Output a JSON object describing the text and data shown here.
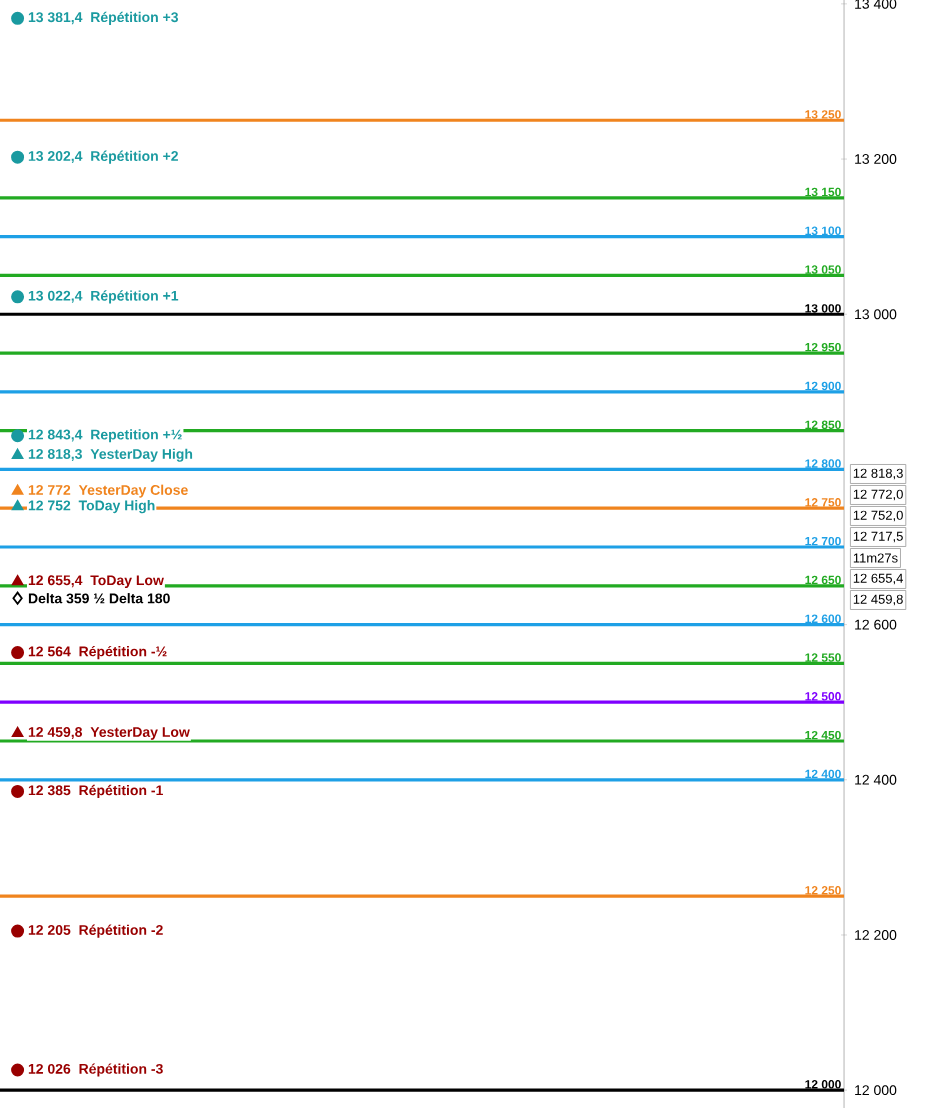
{
  "chart_data": {
    "type": "scatter",
    "categories": [
      null,
      null,
      null,
      null,
      null,
      null,
      null,
      null,
      null,
      null,
      null,
      null,
      null,
      null,
      null,
      null,
      null,
      null,
      null,
      null,
      null,
      null,
      null,
      null
    ],
    "ylim": [
      11977,
      13405
    ],
    "yticks": [
      {
        "value": 12000,
        "label": "12 000"
      },
      {
        "value": 12200,
        "label": "12 200"
      },
      {
        "value": 12400,
        "label": "12 400"
      },
      {
        "value": 12600,
        "label": "12 600"
      },
      {
        "value": 13000,
        "label": "13 000"
      },
      {
        "value": 13200,
        "label": "13 200"
      },
      {
        "value": 13400,
        "label": "13 400"
      }
    ],
    "tick_labels": "y",
    "series": [
      {
        "name": "Répétition +3",
        "color": "#1a9aa0",
        "marker": "circle",
        "values": [
          13381.4,
          null,
          null,
          null,
          null,
          null,
          null,
          null,
          null,
          null,
          null,
          null,
          null,
          null,
          null,
          null,
          null,
          null,
          null,
          null,
          null,
          null,
          null,
          null
        ],
        "value_labels": [
          "13 381,4",
          null,
          null,
          null,
          null,
          null,
          null,
          null,
          null,
          null,
          null,
          null,
          null,
          null,
          null,
          null,
          null,
          null,
          null,
          null,
          null,
          null,
          null,
          null
        ]
      },
      {
        "name": "Répétition +2",
        "color": "#1a9aa0",
        "marker": "circle",
        "values": [
          13202.4,
          null,
          null,
          null,
          null,
          null,
          null,
          null,
          null,
          null,
          null,
          null,
          null,
          null,
          null,
          null,
          null,
          null,
          null,
          null,
          null,
          null,
          null,
          null
        ],
        "value_labels": [
          "13 202,4",
          null,
          null,
          null,
          null,
          null,
          null,
          null,
          null,
          null,
          null,
          null,
          null,
          null,
          null,
          null,
          null,
          null,
          null,
          null,
          null,
          null,
          null,
          null
        ]
      },
      {
        "name": "Répétition +1",
        "color": "#1a9aa0",
        "marker": "circle",
        "values": [
          13022.4,
          null,
          null,
          null,
          null,
          null,
          null,
          null,
          null,
          null,
          null,
          null,
          null,
          null,
          null,
          null,
          null,
          null,
          null,
          null,
          null,
          null,
          null,
          null
        ],
        "value_labels": [
          "13 022,4",
          null,
          null,
          null,
          null,
          null,
          null,
          null,
          null,
          null,
          null,
          null,
          null,
          null,
          null,
          null,
          null,
          null,
          null,
          null,
          null,
          null,
          null,
          null
        ]
      },
      {
        "name": "Repetition +½",
        "color": "#1a9aa0",
        "marker": "circle",
        "values": [
          12843.4,
          null,
          null,
          null,
          null,
          null,
          null,
          null,
          null,
          null,
          null,
          null,
          null,
          null,
          null,
          null,
          null,
          null,
          null,
          null,
          null,
          null,
          null,
          null
        ],
        "value_labels": [
          "12 843,4",
          null,
          null,
          null,
          null,
          null,
          null,
          null,
          null,
          null,
          null,
          null,
          null,
          null,
          null,
          null,
          null,
          null,
          null,
          null,
          null,
          null,
          null,
          null
        ]
      },
      {
        "name": "YesterDay High",
        "color": "#1a9aa0",
        "marker": "triangle",
        "values": [
          12818.3,
          null,
          null,
          null,
          null,
          null,
          null,
          null,
          null,
          null,
          null,
          null,
          null,
          null,
          null,
          null,
          null,
          null,
          null,
          null,
          null,
          null,
          null,
          null
        ],
        "value_labels": [
          "12 818,3",
          null,
          null,
          null,
          null,
          null,
          null,
          null,
          null,
          null,
          null,
          null,
          null,
          null,
          null,
          null,
          null,
          null,
          null,
          null,
          null,
          null,
          null,
          null
        ]
      },
      {
        "name": "YesterDay Close",
        "color": "#f0841e",
        "marker": "triangle",
        "values": [
          12772,
          null,
          null,
          null,
          null,
          null,
          null,
          null,
          null,
          null,
          null,
          null,
          null,
          null,
          null,
          null,
          null,
          null,
          null,
          null,
          null,
          null,
          null,
          null
        ],
        "value_labels": [
          "12 772",
          null,
          null,
          null,
          null,
          null,
          null,
          null,
          null,
          null,
          null,
          null,
          null,
          null,
          null,
          null,
          null,
          null,
          null,
          null,
          null,
          null,
          null,
          null
        ]
      },
      {
        "name": "ToDay High",
        "color": "#1a9aa0",
        "marker": "triangle",
        "values": [
          12752,
          null,
          null,
          null,
          null,
          null,
          null,
          null,
          null,
          null,
          null,
          null,
          null,
          null,
          null,
          null,
          null,
          null,
          null,
          null,
          null,
          null,
          null,
          null
        ],
        "value_labels": [
          "12 752",
          null,
          null,
          null,
          null,
          null,
          null,
          null,
          null,
          null,
          null,
          null,
          null,
          null,
          null,
          null,
          null,
          null,
          null,
          null,
          null,
          null,
          null,
          null
        ]
      },
      {
        "name": "ToDay Low",
        "color": "#990000",
        "marker": "triangle",
        "values": [
          12655.4,
          null,
          null,
          null,
          null,
          null,
          null,
          null,
          null,
          null,
          null,
          null,
          null,
          null,
          null,
          null,
          null,
          null,
          null,
          null,
          null,
          null,
          null,
          null
        ],
        "value_labels": [
          "12 655,4",
          null,
          null,
          null,
          null,
          null,
          null,
          null,
          null,
          null,
          null,
          null,
          null,
          null,
          null,
          null,
          null,
          null,
          null,
          null,
          null,
          null,
          null,
          null
        ]
      },
      {
        "name": "Delta 359   ½ Delta 180",
        "color": "#000000",
        "marker": "diamond",
        "values": [
          12634,
          null,
          null,
          null,
          null,
          null,
          null,
          null,
          null,
          null,
          null,
          null,
          null,
          null,
          null,
          null,
          null,
          null,
          null,
          null,
          null,
          null,
          null,
          null
        ]
      },
      {
        "name": "Répétition -½",
        "color": "#990000",
        "marker": "circle",
        "values": [
          12564,
          null,
          null,
          null,
          null,
          null,
          null,
          null,
          null,
          null,
          null,
          null,
          null,
          null,
          null,
          null,
          null,
          null,
          null,
          null,
          null,
          null,
          null,
          null
        ],
        "value_labels": [
          "12 564",
          null,
          null,
          null,
          null,
          null,
          null,
          null,
          null,
          null,
          null,
          null,
          null,
          null,
          null,
          null,
          null,
          null,
          null,
          null,
          null,
          null,
          null,
          null
        ]
      },
      {
        "name": "YesterDay Low",
        "color": "#990000",
        "marker": "triangle",
        "values": [
          12459.8,
          null,
          null,
          null,
          null,
          null,
          null,
          null,
          null,
          null,
          null,
          null,
          null,
          null,
          null,
          null,
          null,
          null,
          null,
          null,
          null,
          null,
          null,
          null
        ],
        "value_labels": [
          "12 459,8",
          null,
          null,
          null,
          null,
          null,
          null,
          null,
          null,
          null,
          null,
          null,
          null,
          null,
          null,
          null,
          null,
          null,
          null,
          null,
          null,
          null,
          null,
          null
        ]
      },
      {
        "name": "Répétition -1",
        "color": "#990000",
        "marker": "circle",
        "values": [
          12385,
          null,
          null,
          null,
          null,
          null,
          null,
          null,
          null,
          null,
          null,
          null,
          null,
          null,
          null,
          null,
          null,
          null,
          null,
          null,
          null,
          null,
          null,
          null
        ],
        "value_labels": [
          "12 385",
          null,
          null,
          null,
          null,
          null,
          null,
          null,
          null,
          null,
          null,
          null,
          null,
          null,
          null,
          null,
          null,
          null,
          null,
          null,
          null,
          null,
          null,
          null
        ]
      },
      {
        "name": "Répétition -2",
        "color": "#990000",
        "marker": "circle",
        "values": [
          12205,
          null,
          null,
          null,
          null,
          null,
          null,
          null,
          null,
          null,
          null,
          null,
          null,
          null,
          null,
          null,
          null,
          null,
          null,
          null,
          null,
          null,
          null,
          null
        ],
        "value_labels": [
          "12 205",
          null,
          null,
          null,
          null,
          null,
          null,
          null,
          null,
          null,
          null,
          null,
          null,
          null,
          null,
          null,
          null,
          null,
          null,
          null,
          null,
          null,
          null,
          null
        ]
      },
      {
        "name": "Répétition -3",
        "color": "#990000",
        "marker": "circle",
        "values": [
          12026,
          null,
          null,
          null,
          null,
          null,
          null,
          null,
          null,
          null,
          null,
          null,
          null,
          null,
          null,
          null,
          null,
          null,
          null,
          null,
          null,
          null,
          null,
          null
        ],
        "value_labels": [
          "12 026",
          null,
          null,
          null,
          null,
          null,
          null,
          null,
          null,
          null,
          null,
          null,
          null,
          null,
          null,
          null,
          null,
          null,
          null,
          null,
          null,
          null,
          null,
          null
        ]
      }
    ],
    "ref_lines": [
      {
        "axis": "y",
        "value": 13250,
        "label": "13 250",
        "color": "#f0841e"
      },
      {
        "axis": "y",
        "value": 13150,
        "label": "13 150",
        "color": "#22aa22"
      },
      {
        "axis": "y",
        "value": 13100,
        "label": "13 100",
        "color": "#1ea0e6"
      },
      {
        "axis": "y",
        "value": 13050,
        "label": "13 050",
        "color": "#22aa22"
      },
      {
        "axis": "y",
        "value": 13000,
        "label": "13 000",
        "color": "#000000"
      },
      {
        "axis": "y",
        "value": 12950,
        "label": "12 950",
        "color": "#22aa22"
      },
      {
        "axis": "y",
        "value": 12900,
        "label": "12 900",
        "color": "#1ea0e6"
      },
      {
        "axis": "y",
        "value": 12850,
        "label": "12 850",
        "color": "#22aa22"
      },
      {
        "axis": "y",
        "value": 12800,
        "label": "12 800",
        "color": "#1ea0e6"
      },
      {
        "axis": "y",
        "value": 12750,
        "label": "12 750",
        "color": "#f0841e"
      },
      {
        "axis": "y",
        "value": 12700,
        "label": "12 700",
        "color": "#1ea0e6"
      },
      {
        "axis": "y",
        "value": 12650,
        "label": "12 650",
        "color": "#22aa22"
      },
      {
        "axis": "y",
        "value": 12600,
        "label": "12 600",
        "color": "#1ea0e6"
      },
      {
        "axis": "y",
        "value": 12550,
        "label": "12 550",
        "color": "#22aa22"
      },
      {
        "axis": "y",
        "value": 12500,
        "label": "12 500",
        "color": "#7f00ff"
      },
      {
        "axis": "y",
        "value": 12450,
        "label": "12 450",
        "color": "#22aa22"
      },
      {
        "axis": "y",
        "value": 12400,
        "label": "12 400",
        "color": "#1ea0e6"
      },
      {
        "axis": "y",
        "value": 12250,
        "label": "12 250",
        "color": "#f0841e"
      },
      {
        "axis": "y",
        "value": 12000,
        "label": "12 000",
        "color": "#000000"
      }
    ],
    "annotations": [
      "12 818,3",
      "12 772,0",
      "12 752,0",
      "12 717,5",
      "11m27s",
      "12 655,4",
      "12 459,8"
    ]
  }
}
